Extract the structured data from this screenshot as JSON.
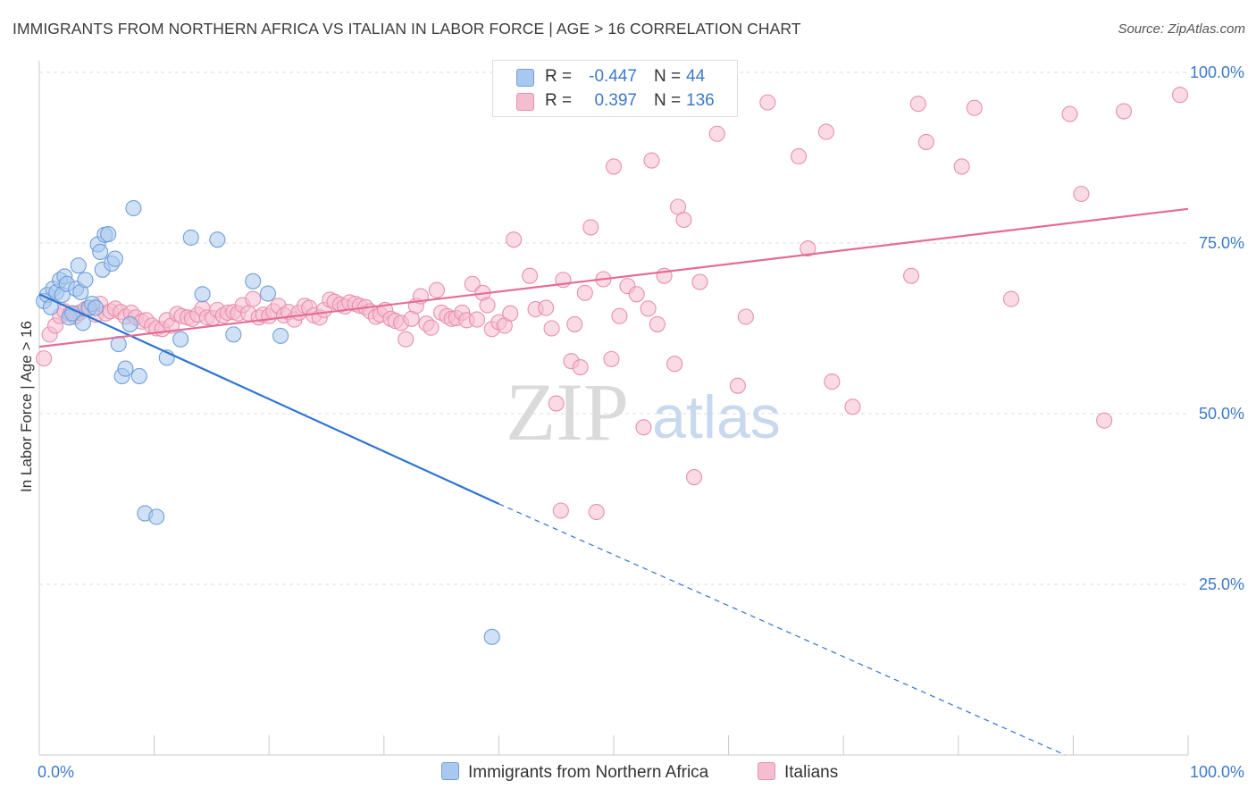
{
  "title": "IMMIGRANTS FROM NORTHERN AFRICA VS ITALIAN IN LABOR FORCE | AGE > 16 CORRELATION CHART",
  "source": "Source: ZipAtlas.com",
  "watermark": {
    "zip": "ZIP",
    "atlas": "atlas"
  },
  "legend": {
    "r_label": "R =",
    "n_label": "N =",
    "rows": [
      {
        "r": "-0.447",
        "n": "44"
      },
      {
        "r": "0.397",
        "n": "136"
      }
    ]
  },
  "colors": {
    "blue_fill": "#a9c8ef",
    "blue_stroke": "#6f9fd8",
    "blue_line": "#2f74d0",
    "pink_fill": "#f5bed0",
    "pink_stroke": "#e88fae",
    "pink_line": "#e56b95",
    "tick_label": "#3d78c9",
    "grid": "#dcdcdc"
  },
  "chart_data": {
    "type": "scatter",
    "title": "IMMIGRANTS FROM NORTHERN AFRICA VS ITALIAN IN LABOR FORCE | AGE > 16 CORRELATION CHART",
    "xlabel": "",
    "ylabel": "In Labor Force | Age > 16",
    "xlim": [
      0,
      100
    ],
    "ylim": [
      0,
      100
    ],
    "x_tick_labels": [
      "0.0%",
      "100.0%"
    ],
    "y_ticks": [
      {
        "value": 100,
        "label": "100.0%"
      },
      {
        "value": 75,
        "label": "75.0%"
      },
      {
        "value": 50,
        "label": "50.0%"
      },
      {
        "value": 25,
        "label": "25.0%"
      }
    ],
    "grid": true,
    "legend_position": "bottom",
    "series": [
      {
        "name": "Immigrants from Northern Africa",
        "r": -0.447,
        "n": 44,
        "trend": {
          "x0": 0,
          "y0": 67.5,
          "x1": 40,
          "y1": 36.8,
          "dashed_to_x": 89.3,
          "dashed_to_y": 0
        },
        "points": [
          [
            0.4,
            66.5
          ],
          [
            0.7,
            67.4
          ],
          [
            1.0,
            65.6
          ],
          [
            1.2,
            68.3
          ],
          [
            1.5,
            67.8
          ],
          [
            1.8,
            69.6
          ],
          [
            2.0,
            67.4
          ],
          [
            2.2,
            70.1
          ],
          [
            2.4,
            69.0
          ],
          [
            2.6,
            64.1
          ],
          [
            2.9,
            64.7
          ],
          [
            3.2,
            68.3
          ],
          [
            3.4,
            71.7
          ],
          [
            3.6,
            67.8
          ],
          [
            3.8,
            63.3
          ],
          [
            4.0,
            69.6
          ],
          [
            4.3,
            65.5
          ],
          [
            4.6,
            66.1
          ],
          [
            4.9,
            65.5
          ],
          [
            5.1,
            74.8
          ],
          [
            5.3,
            73.7
          ],
          [
            5.5,
            71.1
          ],
          [
            5.7,
            76.2
          ],
          [
            6.0,
            76.3
          ],
          [
            6.3,
            72.0
          ],
          [
            6.6,
            72.7
          ],
          [
            6.9,
            60.2
          ],
          [
            7.2,
            55.5
          ],
          [
            7.5,
            56.6
          ],
          [
            7.9,
            63.1
          ],
          [
            8.2,
            80.1
          ],
          [
            8.7,
            55.5
          ],
          [
            9.2,
            35.4
          ],
          [
            10.2,
            34.9
          ],
          [
            11.1,
            58.2
          ],
          [
            12.3,
            60.9
          ],
          [
            13.2,
            75.8
          ],
          [
            14.2,
            67.5
          ],
          [
            15.5,
            75.5
          ],
          [
            16.9,
            61.6
          ],
          [
            18.6,
            69.4
          ],
          [
            19.9,
            67.6
          ],
          [
            21.0,
            61.4
          ],
          [
            39.4,
            17.3
          ]
        ]
      },
      {
        "name": "Italians",
        "r": 0.397,
        "n": 136,
        "trend": {
          "x0": 0,
          "y0": 59.8,
          "x1": 100,
          "y1": 80.0
        },
        "points": [
          [
            0.4,
            58.1
          ],
          [
            0.9,
            61.6
          ],
          [
            1.4,
            62.9
          ],
          [
            1.8,
            64.3
          ],
          [
            2.2,
            65.0
          ],
          [
            2.7,
            64.6
          ],
          [
            3.1,
            64.2
          ],
          [
            3.5,
            64.8
          ],
          [
            4.0,
            65.3
          ],
          [
            4.4,
            65.5
          ],
          [
            4.9,
            64.5
          ],
          [
            5.3,
            66.1
          ],
          [
            5.8,
            64.7
          ],
          [
            6.2,
            65.0
          ],
          [
            6.6,
            65.4
          ],
          [
            7.1,
            64.9
          ],
          [
            7.5,
            64.2
          ],
          [
            8.0,
            64.8
          ],
          [
            8.4,
            64.1
          ],
          [
            8.9,
            63.5
          ],
          [
            9.3,
            63.7
          ],
          [
            9.8,
            62.9
          ],
          [
            10.2,
            62.5
          ],
          [
            10.7,
            62.4
          ],
          [
            11.1,
            63.7
          ],
          [
            11.5,
            62.9
          ],
          [
            12.0,
            64.6
          ],
          [
            12.4,
            64.3
          ],
          [
            12.9,
            64.1
          ],
          [
            13.3,
            63.9
          ],
          [
            13.8,
            64.5
          ],
          [
            14.2,
            65.4
          ],
          [
            14.6,
            64.1
          ],
          [
            15.1,
            64.0
          ],
          [
            15.5,
            65.2
          ],
          [
            16.0,
            64.4
          ],
          [
            16.4,
            64.8
          ],
          [
            16.9,
            64.9
          ],
          [
            17.3,
            64.7
          ],
          [
            17.7,
            65.9
          ],
          [
            18.2,
            64.7
          ],
          [
            18.6,
            66.8
          ],
          [
            19.1,
            64.1
          ],
          [
            19.5,
            64.5
          ],
          [
            20.0,
            64.3
          ],
          [
            20.4,
            65.0
          ],
          [
            20.8,
            65.8
          ],
          [
            21.3,
            64.4
          ],
          [
            21.7,
            64.9
          ],
          [
            22.2,
            63.8
          ],
          [
            22.6,
            64.8
          ],
          [
            23.1,
            65.8
          ],
          [
            23.5,
            65.5
          ],
          [
            23.9,
            64.4
          ],
          [
            24.4,
            64.1
          ],
          [
            24.8,
            65.2
          ],
          [
            25.3,
            66.7
          ],
          [
            25.7,
            66.4
          ],
          [
            26.2,
            66.0
          ],
          [
            26.6,
            65.7
          ],
          [
            27.0,
            66.3
          ],
          [
            27.5,
            66.1
          ],
          [
            27.9,
            65.8
          ],
          [
            28.4,
            65.6
          ],
          [
            28.8,
            65.0
          ],
          [
            29.3,
            64.2
          ],
          [
            29.7,
            64.5
          ],
          [
            30.1,
            65.2
          ],
          [
            30.6,
            63.9
          ],
          [
            31.0,
            63.6
          ],
          [
            31.5,
            63.3
          ],
          [
            31.9,
            60.9
          ],
          [
            32.4,
            63.9
          ],
          [
            32.8,
            65.8
          ],
          [
            33.2,
            67.2
          ],
          [
            33.7,
            63.2
          ],
          [
            34.1,
            62.6
          ],
          [
            34.6,
            68.1
          ],
          [
            35.0,
            64.8
          ],
          [
            35.5,
            64.3
          ],
          [
            35.9,
            63.9
          ],
          [
            36.3,
            64.0
          ],
          [
            36.8,
            64.8
          ],
          [
            37.2,
            63.7
          ],
          [
            37.7,
            69.0
          ],
          [
            38.1,
            63.8
          ],
          [
            38.6,
            67.7
          ],
          [
            39.0,
            65.9
          ],
          [
            39.4,
            62.4
          ],
          [
            40.0,
            63.4
          ],
          [
            40.5,
            62.9
          ],
          [
            41.0,
            64.7
          ],
          [
            41.3,
            75.5
          ],
          [
            42.7,
            70.2
          ],
          [
            43.2,
            65.3
          ],
          [
            44.1,
            65.5
          ],
          [
            44.6,
            62.5
          ],
          [
            45.0,
            51.5
          ],
          [
            45.4,
            35.8
          ],
          [
            45.6,
            69.6
          ],
          [
            46.3,
            57.7
          ],
          [
            46.6,
            63.1
          ],
          [
            47.1,
            56.8
          ],
          [
            47.5,
            67.7
          ],
          [
            48.0,
            77.3
          ],
          [
            48.5,
            35.6
          ],
          [
            49.1,
            69.7
          ],
          [
            49.8,
            58.0
          ],
          [
            50.0,
            86.2
          ],
          [
            50.5,
            64.3
          ],
          [
            51.2,
            68.7
          ],
          [
            52.0,
            67.5
          ],
          [
            52.6,
            48.0
          ],
          [
            53.0,
            65.4
          ],
          [
            53.3,
            87.1
          ],
          [
            53.8,
            63.1
          ],
          [
            54.4,
            70.2
          ],
          [
            55.3,
            57.3
          ],
          [
            55.6,
            80.3
          ],
          [
            56.1,
            78.4
          ],
          [
            57.0,
            40.7
          ],
          [
            57.5,
            69.3
          ],
          [
            59.0,
            91.0
          ],
          [
            60.8,
            54.1
          ],
          [
            61.5,
            64.2
          ],
          [
            63.4,
            95.6
          ],
          [
            66.1,
            87.7
          ],
          [
            66.9,
            74.2
          ],
          [
            68.5,
            91.3
          ],
          [
            69.0,
            54.7
          ],
          [
            70.8,
            51.0
          ],
          [
            75.9,
            70.2
          ],
          [
            76.5,
            95.4
          ],
          [
            77.2,
            89.8
          ],
          [
            80.3,
            86.2
          ],
          [
            81.4,
            94.8
          ],
          [
            84.6,
            66.8
          ],
          [
            89.7,
            93.9
          ],
          [
            90.7,
            82.2
          ],
          [
            92.7,
            49.0
          ],
          [
            94.4,
            94.3
          ],
          [
            99.3,
            96.7
          ]
        ]
      }
    ]
  },
  "bottom_legend": [
    {
      "label": "Immigrants from Northern Africa"
    },
    {
      "label": "Italians"
    }
  ]
}
